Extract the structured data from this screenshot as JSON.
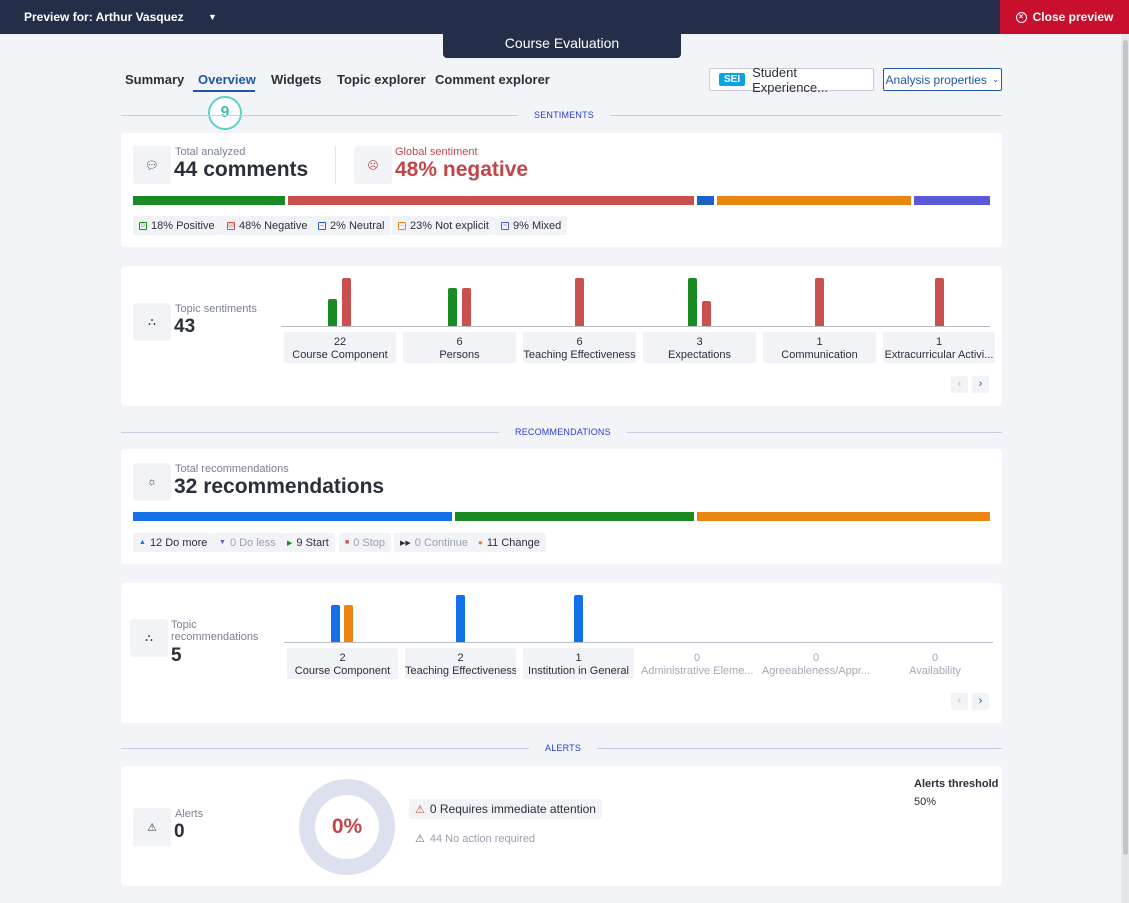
{
  "topbar": {
    "preview_for": "Preview for: Arthur Vasquez",
    "close_label": "Close preview"
  },
  "course_tab": "Course Evaluation",
  "nav": {
    "tabs": [
      "Summary",
      "Overview",
      "Widgets",
      "Topic explorer",
      "Comment explorer"
    ],
    "active": "Overview"
  },
  "step_badge": "9",
  "sei": {
    "badge": "SEI",
    "label": "Student Experience..."
  },
  "analysis_properties": "Analysis properties",
  "sections": {
    "sentiments": "SENTIMENTS",
    "recommendations": "RECOMMENDATIONS",
    "alerts": "ALERTS"
  },
  "sentiments": {
    "total_label": "Total analyzed",
    "total_value": "44 comments",
    "global_label": "Global sentiment",
    "global_value": "48% negative",
    "chips": [
      "18% Positive",
      "48% Negative",
      "2% Neutral",
      "23% Not explicit",
      "9% Mixed"
    ],
    "distribution": [
      {
        "name": "Positive",
        "percent": 18,
        "color": "#1a8a22"
      },
      {
        "name": "Negative",
        "percent": 48,
        "color": "#c9504f"
      },
      {
        "name": "Neutral",
        "percent": 2,
        "color": "#1b63c6"
      },
      {
        "name": "Not explicit",
        "percent": 23,
        "color": "#ea8610"
      },
      {
        "name": "Mixed",
        "percent": 9,
        "color": "#5a5ad8"
      }
    ]
  },
  "topic_sentiments": {
    "label": "Topic sentiments",
    "value": "43",
    "topics": [
      {
        "count": "22",
        "name": "Course Component"
      },
      {
        "count": "6",
        "name": "Persons"
      },
      {
        "count": "6",
        "name": "Teaching Effectiveness"
      },
      {
        "count": "3",
        "name": "Expectations"
      },
      {
        "count": "1",
        "name": "Communication"
      },
      {
        "count": "1",
        "name": "Extracurricular Activi..."
      }
    ]
  },
  "recommendations": {
    "total_label": "Total recommendations",
    "total_value": "32 recommendations",
    "chips": [
      "12 Do more",
      "0 Do less",
      "9 Start",
      "0 Stop",
      "0 Continue",
      "11 Change"
    ],
    "distribution": [
      {
        "name": "Do more",
        "count": 12,
        "color": "#1470e6"
      },
      {
        "name": "Start",
        "count": 9,
        "color": "#1a8a22"
      },
      {
        "name": "Change",
        "count": 11,
        "color": "#ea8610"
      }
    ]
  },
  "topic_recommendations": {
    "label": "Topic recommendations",
    "value": "5",
    "topics": [
      {
        "count": "2",
        "name": "Course Component"
      },
      {
        "count": "2",
        "name": "Teaching Effectiveness"
      },
      {
        "count": "1",
        "name": "Institution in General"
      },
      {
        "count": "0",
        "name": "Administrative Eleme..."
      },
      {
        "count": "0",
        "name": "Agreeableness/Appr..."
      },
      {
        "count": "0",
        "name": "Availability"
      }
    ]
  },
  "alerts": {
    "label": "Alerts",
    "value": "0",
    "donut_value": "0%",
    "immediate": "0 Requires immediate attention",
    "no_action": "44 No action required",
    "threshold_label": "Alerts threshold",
    "threshold_value": "50%"
  }
}
